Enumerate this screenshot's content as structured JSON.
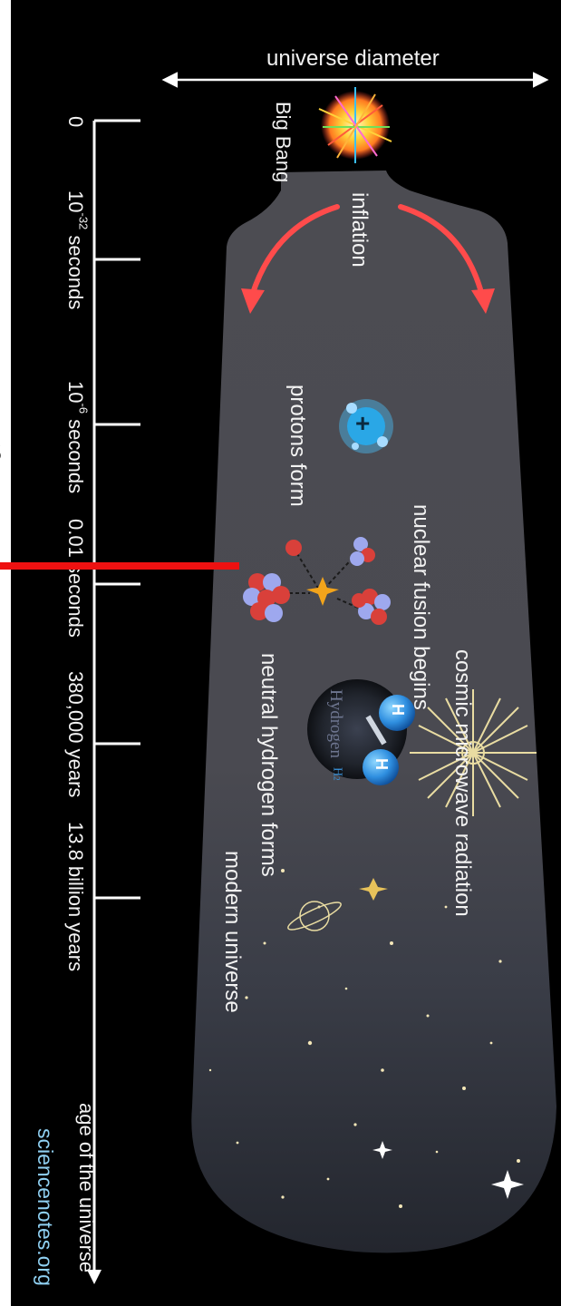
{
  "diagram": {
    "top_axis_label": "universe diameter",
    "big_bang_label": "Big Bang",
    "stages": [
      {
        "id": "inflation",
        "label": "inflation"
      },
      {
        "id": "protons",
        "label": "protons form"
      },
      {
        "id": "fusion",
        "label": "nuclear fusion begins"
      },
      {
        "id": "cmb",
        "label": "cosmic microwave radiation"
      },
      {
        "id": "hydrogen",
        "label": "neutral hydrogen forms"
      },
      {
        "id": "modern",
        "label": "modern universe"
      }
    ],
    "timeline": {
      "axis_label": "age of the universe",
      "ticks": [
        {
          "base": "0",
          "sup": "",
          "unit": ""
        },
        {
          "base": "10",
          "sup": "-32",
          "unit": "seconds"
        },
        {
          "base": "10",
          "sup": "-6",
          "unit": "seconds"
        },
        {
          "base": "0.01",
          "sup": "",
          "unit": "seconds"
        },
        {
          "base": "380,000 years",
          "sup": "",
          "unit": ""
        },
        {
          "base": "13.8 billion years",
          "sup": "",
          "unit": ""
        }
      ]
    },
    "hydrogen_molecule": {
      "atom_label": "H",
      "caption": "Hydrogen",
      "formula": "H",
      "formula_sub": "2"
    },
    "proton_symbol": "+",
    "credit": "sciencenotes.org",
    "side_fragment": "s"
  },
  "colors": {
    "background": "#000000",
    "cone": "#4b4b50",
    "arrow": "#ff4b4b",
    "marker": "#ee1111",
    "credit": "#8fd0f2",
    "proton": "#2aa7e6",
    "neutron": "#9ea8ee",
    "nucleon_red": "#d9403a"
  }
}
